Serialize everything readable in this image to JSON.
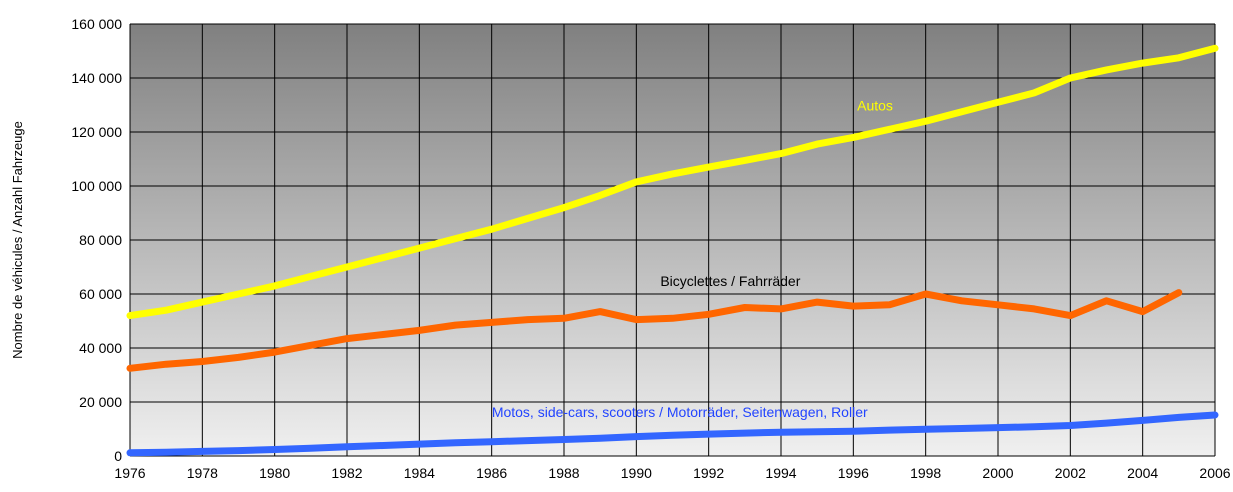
{
  "chart_data": {
    "type": "line",
    "title": "",
    "xlabel": "",
    "ylabel": "Nombre de véhicules / Anzahl Fahrzeuge",
    "xlim": [
      1976,
      2006
    ],
    "ylim": [
      0,
      160000
    ],
    "grid": true,
    "legend": "none",
    "x_ticks": [
      1976,
      1978,
      1980,
      1982,
      1984,
      1986,
      1988,
      1990,
      1992,
      1994,
      1996,
      1998,
      2000,
      2002,
      2004,
      2006
    ],
    "x_tick_labels": [
      "1976",
      "1978",
      "1980",
      "1982",
      "1984",
      "1986",
      "1988",
      "1990",
      "1992",
      "1994",
      "1996",
      "1998",
      "2000",
      "2002",
      "2004",
      "2006"
    ],
    "y_ticks": [
      0,
      20000,
      40000,
      60000,
      80000,
      100000,
      120000,
      140000,
      160000
    ],
    "y_tick_labels": [
      "0",
      "20 000",
      "40 000",
      "60 000",
      "80 000",
      "100 000",
      "120 000",
      "140 000",
      "160 000"
    ],
    "series": [
      {
        "name": "Autos",
        "color": "#ffff00",
        "x": [
          1976,
          1977,
          1978,
          1979,
          1980,
          1981,
          1982,
          1983,
          1984,
          1985,
          1986,
          1987,
          1988,
          1989,
          1990,
          1991,
          1992,
          1993,
          1994,
          1995,
          1996,
          1997,
          1998,
          1999,
          2000,
          2001,
          2002,
          2003,
          2004,
          2005,
          2006
        ],
        "values": [
          52000,
          54000,
          57000,
          60000,
          63000,
          66500,
          70000,
          73500,
          77000,
          80500,
          84000,
          88000,
          92000,
          96500,
          101500,
          104500,
          107000,
          109500,
          112000,
          115500,
          118000,
          121000,
          124000,
          127500,
          131000,
          134500,
          140000,
          143000,
          145500,
          147500,
          151000
        ]
      },
      {
        "name": "Bicyclettes / Fahrräder",
        "color": "#ff6600",
        "x": [
          1976,
          1977,
          1978,
          1979,
          1980,
          1981,
          1982,
          1983,
          1984,
          1985,
          1986,
          1987,
          1988,
          1989,
          1990,
          1991,
          1992,
          1993,
          1994,
          1995,
          1996,
          1997,
          1998,
          1999,
          2000,
          2001,
          2002,
          2003,
          2004,
          2005
        ],
        "values": [
          32500,
          34000,
          35000,
          36500,
          38500,
          41000,
          43500,
          45000,
          46500,
          48500,
          49500,
          50500,
          51000,
          53500,
          50500,
          51000,
          52500,
          55000,
          54500,
          57000,
          55500,
          56000,
          60000,
          57500,
          56000,
          54500,
          52000,
          57500,
          53500,
          60500
        ]
      },
      {
        "name": "Motos, side-cars, scooters / Motorräder, Seitenwagen, Roller",
        "color": "#3366ff",
        "x": [
          1976,
          1977,
          1978,
          1979,
          1980,
          1981,
          1982,
          1983,
          1984,
          1985,
          1986,
          1987,
          1988,
          1989,
          1990,
          1991,
          1992,
          1993,
          1994,
          1995,
          1996,
          1997,
          1998,
          1999,
          2000,
          2001,
          2002,
          2003,
          2004,
          2005,
          2006
        ],
        "values": [
          1200,
          1400,
          1700,
          2000,
          2400,
          2900,
          3400,
          3900,
          4400,
          4900,
          5300,
          5700,
          6100,
          6600,
          7200,
          7700,
          8100,
          8500,
          8800,
          9000,
          9200,
          9600,
          9900,
          10200,
          10500,
          10800,
          11300,
          12200,
          13200,
          14300,
          15200
        ]
      }
    ],
    "labels": [
      {
        "text": "Autos",
        "color": "#ffff00",
        "x": 1996.6,
        "y": 128000
      },
      {
        "text": "Bicyclettes / Fahrräder",
        "color": "#000000",
        "x": 1992.6,
        "y": 63000
      },
      {
        "text": "Motos, side-cars, scooters / Motorräder, Seitenwagen, Roller",
        "color": "#2244ff",
        "x": 1991.2,
        "y": 14500
      }
    ]
  }
}
